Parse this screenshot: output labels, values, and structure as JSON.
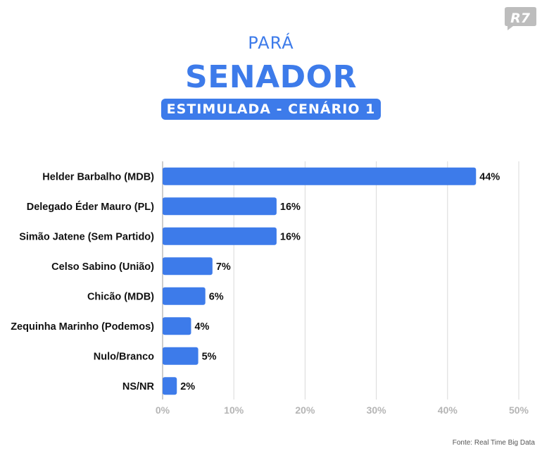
{
  "header": {
    "state": "PARÁ",
    "office": "SENADOR",
    "scenario": "ESTIMULADA - CENÁRIO 1",
    "logo_text": "R7"
  },
  "source": "Fonte: Real Time Big Data",
  "colors": {
    "accent": "#3d7bea",
    "logo": "#bdbdbd",
    "grid": "#d9d9d9"
  },
  "chart_data": {
    "type": "bar",
    "orientation": "horizontal",
    "categories": [
      "Helder Barbalho (MDB)",
      "Delegado Éder Mauro (PL)",
      "Simão Jatene (Sem Partido)",
      "Celso Sabino (União)",
      "Chicão (MDB)",
      "Zequinha Marinho (Podemos)",
      "Nulo/Branco",
      "NS/NR"
    ],
    "values": [
      44,
      16,
      16,
      7,
      6,
      4,
      5,
      2
    ],
    "value_labels": [
      "44%",
      "16%",
      "16%",
      "7%",
      "6%",
      "4%",
      "5%",
      "2%"
    ],
    "xlim": [
      0,
      50
    ],
    "ticks": [
      0,
      10,
      20,
      30,
      40,
      50
    ],
    "tick_labels": [
      "0%",
      "10%",
      "20%",
      "30%",
      "40%",
      "50%"
    ],
    "grid": true
  }
}
